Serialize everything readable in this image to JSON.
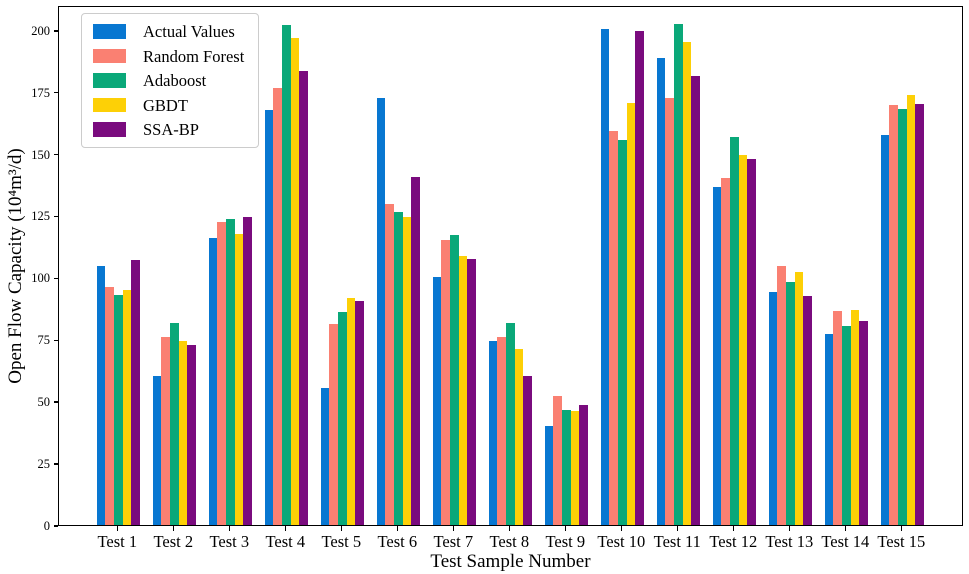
{
  "chart_data": {
    "type": "bar",
    "title": "",
    "xlabel": "Test Sample Number",
    "ylabel": "Open Flow Capacity (10⁴m³/d)",
    "categories": [
      "Test 1",
      "Test 2",
      "Test 3",
      "Test 4",
      "Test 5",
      "Test 6",
      "Test 7",
      "Test 8",
      "Test 9",
      "Test 10",
      "Test 11",
      "Test 12",
      "Test 13",
      "Test 14",
      "Test 15"
    ],
    "series": [
      {
        "name": "Actual Values",
        "color": "#0877d1",
        "values": [
          104.5,
          60,
          116,
          167.5,
          55.5,
          172.5,
          100,
          74.5,
          40,
          200.5,
          188.5,
          136.5,
          94,
          77,
          157.5
        ]
      },
      {
        "name": "Random Forest",
        "color": "#fa8072",
        "values": [
          96,
          76,
          122.5,
          176.5,
          81,
          129.5,
          115,
          76,
          52,
          159,
          172.5,
          140,
          104.5,
          86.5,
          169.5
        ]
      },
      {
        "name": "Adaboost",
        "color": "#0aa879",
        "values": [
          93,
          81.5,
          123.5,
          202,
          86,
          126.5,
          117,
          81.5,
          46.5,
          155.5,
          202.5,
          156.5,
          98,
          80.5,
          168
        ]
      },
      {
        "name": "GBDT",
        "color": "#fdd006",
        "values": [
          95,
          74.5,
          117.5,
          196.5,
          91.5,
          124.5,
          108.5,
          71,
          46,
          170.5,
          195,
          149.5,
          102,
          87,
          173.5
        ]
      },
      {
        "name": "SSA-BP",
        "color": "#7a0b7e",
        "values": [
          107,
          72.5,
          124.5,
          183.5,
          90.5,
          140.5,
          107.5,
          60,
          48.5,
          199.5,
          181.5,
          148,
          92.5,
          82.5,
          170
        ]
      }
    ],
    "yticks": [
      0,
      25,
      50,
      75,
      100,
      125,
      150,
      175,
      200
    ],
    "ylim": [
      0,
      210
    ],
    "legend_position": "upper left",
    "grid": false
  }
}
